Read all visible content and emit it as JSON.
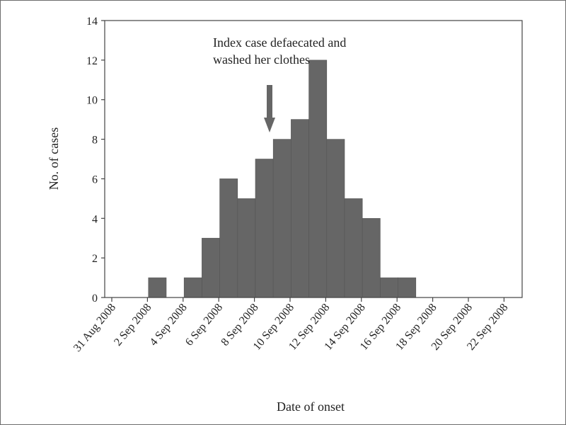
{
  "chart_data": {
    "type": "bar",
    "title": "",
    "xlabel": "Date of onset",
    "ylabel": "No. of cases",
    "ylim": [
      0,
      14
    ],
    "yticks": [
      0,
      2,
      4,
      6,
      8,
      10,
      12,
      14
    ],
    "x_tick_labels": [
      "31 Aug 2008",
      "2 Sep 2008",
      "4 Sep 2008",
      "6 Sep 2008",
      "8 Sep 2008",
      "10 Sep 2008",
      "12 Sep 2008",
      "14 Sep 2008",
      "16 Sep 2008",
      "18 Sep 2008",
      "20 Sep 2008",
      "22 Sep 2008"
    ],
    "categories": [
      "31 Aug 2008",
      "1 Sep 2008",
      "2 Sep 2008",
      "3 Sep 2008",
      "4 Sep 2008",
      "5 Sep 2008",
      "6 Sep 2008",
      "7 Sep 2008",
      "8 Sep 2008",
      "9 Sep 2008",
      "10 Sep 2008",
      "11 Sep 2008",
      "12 Sep 2008",
      "13 Sep 2008",
      "14 Sep 2008",
      "15 Sep 2008",
      "16 Sep 2008",
      "17 Sep 2008",
      "18 Sep 2008",
      "19 Sep 2008",
      "20 Sep 2008",
      "21 Sep 2008",
      "22 Sep 2008"
    ],
    "values": [
      0,
      0,
      0,
      0,
      1,
      0,
      1,
      3,
      6,
      5,
      7,
      8,
      9,
      12,
      8,
      5,
      4,
      1,
      1,
      0,
      0,
      0,
      0
    ],
    "bar_color": "#666666",
    "grid": false,
    "legend": "none",
    "annotation": {
      "lines": [
        "Index case defaecated and",
        "washed her clothes"
      ],
      "date": "10 Sep 2008"
    }
  }
}
